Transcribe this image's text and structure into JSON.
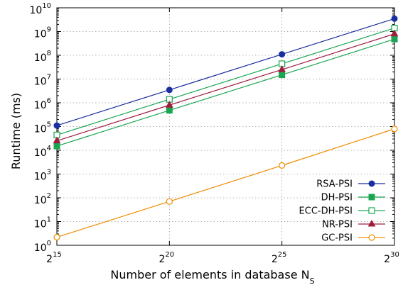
{
  "chart_data": {
    "type": "line",
    "xlabel": "Number of elements in database N",
    "xlabel_sub": "S",
    "ylabel": "Runtime (ms)",
    "x_scale": "log2",
    "y_scale": "log10",
    "xlim": [
      15,
      30
    ],
    "ylim": [
      0,
      10
    ],
    "x_ticks": [
      {
        "value": 15,
        "base": "2",
        "exp": "15"
      },
      {
        "value": 20,
        "base": "2",
        "exp": "20"
      },
      {
        "value": 25,
        "base": "2",
        "exp": "25"
      },
      {
        "value": 30,
        "base": "2",
        "exp": "30"
      }
    ],
    "y_ticks": [
      {
        "value": 0,
        "base": "10",
        "exp": "0"
      },
      {
        "value": 1,
        "base": "10",
        "exp": "1"
      },
      {
        "value": 2,
        "base": "10",
        "exp": "2"
      },
      {
        "value": 3,
        "base": "10",
        "exp": "3"
      },
      {
        "value": 4,
        "base": "10",
        "exp": "4"
      },
      {
        "value": 5,
        "base": "10",
        "exp": "5"
      },
      {
        "value": 6,
        "base": "10",
        "exp": "6"
      },
      {
        "value": 7,
        "base": "10",
        "exp": "7"
      },
      {
        "value": 8,
        "base": "10",
        "exp": "8"
      },
      {
        "value": 9,
        "base": "10",
        "exp": "9"
      },
      {
        "value": 10,
        "base": "10",
        "exp": "10"
      }
    ],
    "grid": true,
    "legend_position": "bottom-right",
    "series": [
      {
        "name": "RSA-PSI",
        "color": "#1a2fa0",
        "marker": "circle-filled",
        "x": [
          15,
          20,
          25,
          30
        ],
        "y": [
          110000,
          3500000,
          110000000,
          3500000000
        ]
      },
      {
        "name": "DH-PSI",
        "color": "#1aa650",
        "marker": "square-filled",
        "x": [
          15,
          20,
          25,
          30
        ],
        "y": [
          15000,
          480000,
          15000000,
          480000000
        ]
      },
      {
        "name": "ECC-DH-PSI",
        "color": "#1aa650",
        "marker": "square-open",
        "x": [
          15,
          20,
          25,
          30
        ],
        "y": [
          44000,
          1400000,
          44000000,
          1400000000
        ]
      },
      {
        "name": "NR-PSI",
        "color": "#a01c3c",
        "marker": "triangle-filled",
        "x": [
          15,
          20,
          25,
          30
        ],
        "y": [
          25000,
          800000,
          25000000,
          800000000
        ]
      },
      {
        "name": "GC-PSI",
        "color": "#f08c00",
        "marker": "circle-open",
        "x": [
          15,
          20,
          25,
          30
        ],
        "y": [
          2.2,
          70,
          2300,
          80000
        ]
      }
    ]
  }
}
